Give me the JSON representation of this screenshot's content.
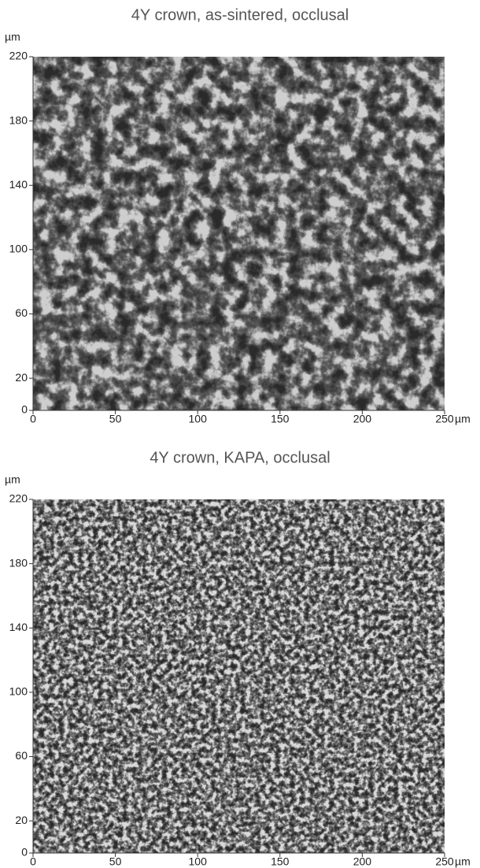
{
  "chart_data": [
    {
      "type": "image",
      "title": "4Y crown,  as-sintered, occlusal",
      "ylabel": "µm",
      "xlabel": "µm",
      "xlim": [
        0,
        250
      ],
      "ylim": [
        0,
        220
      ],
      "xticks": [
        0,
        50,
        100,
        150,
        200,
        250
      ],
      "yticks": [
        0,
        20,
        60,
        100,
        140,
        180,
        220
      ]
    },
    {
      "type": "image",
      "title": "4Y crown, KAPA, occlusal",
      "ylabel": "µm",
      "xlabel": "µm",
      "xlim": [
        0,
        250
      ],
      "ylim": [
        0,
        220
      ],
      "xticks": [
        0,
        50,
        100,
        150,
        200,
        250
      ],
      "yticks": [
        0,
        20,
        60,
        100,
        140,
        180,
        220
      ]
    }
  ]
}
